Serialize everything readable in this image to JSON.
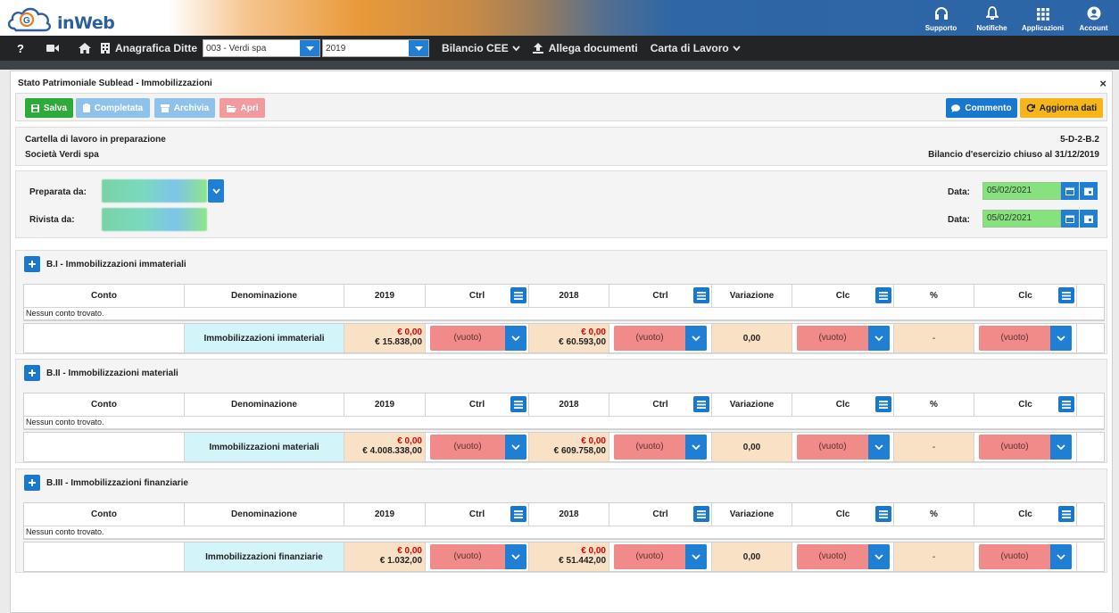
{
  "brand": {
    "name": "inWeb",
    "logo_letters": "G"
  },
  "top_actions": [
    {
      "label": "Supporto",
      "icon": "headset-icon"
    },
    {
      "label": "Notifiche",
      "icon": "bell-icon"
    },
    {
      "label": "Applicazioni",
      "icon": "apps-grid-icon"
    },
    {
      "label": "Account",
      "icon": "user-icon"
    }
  ],
  "nav": {
    "help": "?",
    "anagrafica_label": "Anagrafica Ditte",
    "company_value": "003 - Verdi spa",
    "year_value": "2019",
    "menus": [
      "Bilancio CEE",
      "Allega documenti",
      "Carta di Lavoro"
    ]
  },
  "panel": {
    "title": "Stato Patrimoniale Sublead - Immobilizzazioni",
    "close": "×"
  },
  "toolbar": {
    "save": "Salva",
    "complete": "Completata",
    "archive": "Archivia",
    "open": "Apri",
    "comment": "Commento",
    "update": "Aggiorna dati"
  },
  "info": {
    "status": "Cartella di lavoro in preparazione",
    "company": "Società Verdi spa",
    "code": "5-D-2-B.2",
    "period": "Bilancio d'esercizio chiuso al 31/12/2019"
  },
  "prep": {
    "prepared_label": "Preparata da:",
    "reviewed_label": "Rivista da:",
    "date_label": "Data:",
    "prepared_date": "05/02/2021",
    "reviewed_date": "05/02/2021"
  },
  "columns": [
    "Conto",
    "Denominazione",
    "2019",
    "Ctrl",
    "2018",
    "Ctrl",
    "Variazione",
    "Clc",
    "%",
    "Clc"
  ],
  "empty_text": "Nessun conto trovato.",
  "select_placeholder": "(vuoto)",
  "sections": [
    {
      "title": "B.I - Immobilizzazioni immateriali",
      "denominazione": "Immobilizzazioni immateriali",
      "y2019_red": "€ 0,00",
      "y2019": "€ 15.838,00",
      "y2018_red": "€ 0,00",
      "y2018": "€ 60.593,00",
      "variazione": "0,00",
      "pct": "-"
    },
    {
      "title": "B.II - Immobilizzazioni materiali",
      "denominazione": "Immobilizzazioni materiali",
      "y2019_red": "€ 0,00",
      "y2019": "€ 4.008.338,00",
      "y2018_red": "€ 0,00",
      "y2018": "€ 609.758,00",
      "variazione": "0,00",
      "pct": "-"
    },
    {
      "title": "B.III - Immobilizzazioni finanziarie",
      "denominazione": "Immobilizzazioni finanziarie",
      "y2019_red": "€ 0,00",
      "y2019": "€ 1.032,00",
      "y2018_red": "€ 0,00",
      "y2018": "€ 51.442,00",
      "variazione": "0,00",
      "pct": "-"
    }
  ],
  "colors": {
    "header_blue": "#2c65a8",
    "nav_dark": "#222425",
    "primary": "#1877cf",
    "success": "#2eaa3b",
    "warning": "#f5b619",
    "select_red": "#f08b89",
    "value_bg": "#f9e1c6",
    "denom_bg": "#d3f5fa",
    "date_bg": "#86e27c"
  }
}
